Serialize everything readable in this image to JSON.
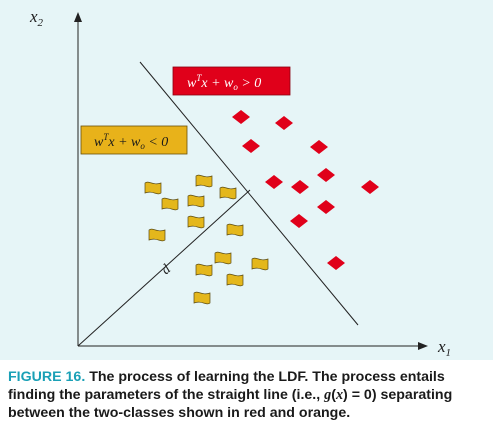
{
  "axes": {
    "x_label": "x",
    "x_sub": "1",
    "y_label": "x",
    "y_sub": "2"
  },
  "regions": {
    "positive": {
      "prefix": "w",
      "sup": "T",
      "mid": "x + w",
      "sub": "o",
      "rel": " > 0",
      "color": "#e0001a"
    },
    "negative": {
      "prefix": "w",
      "sup": "T",
      "mid": "x + w",
      "sub": "o",
      "rel": " < 0",
      "color": "#e8b21a"
    }
  },
  "distance_label": "d",
  "class_colors": {
    "red": "#e0001a",
    "orange": "#e4b71c"
  },
  "icons": {
    "red_class": "diamond-marker-icon",
    "orange_class": "wavy-flag-icon"
  },
  "caption": {
    "lead": "FIGURE 16.",
    "text1": " The process of learning the LDF. The process entails finding the parameters of the straight line (i.e., ",
    "g": "g",
    "paren_open": "(",
    "x": "x",
    "text2": ") = 0) separating between the two-classes shown in red and orange."
  }
}
